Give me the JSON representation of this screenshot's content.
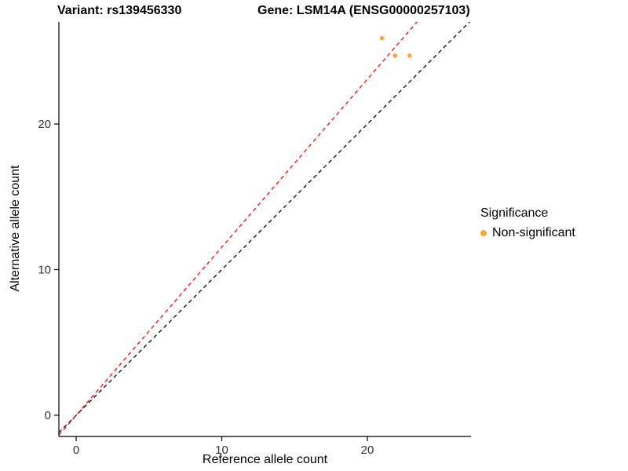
{
  "titles": {
    "left": "Variant: rs139456330",
    "right": "Gene: LSM14A (ENSG00000257103)"
  },
  "axes": {
    "x_label": "Reference allele count",
    "y_label": "Alternative allele count"
  },
  "legend": {
    "title": "Significance",
    "items": [
      {
        "label": "Non-significant",
        "color": "#FAA53C"
      }
    ]
  },
  "chart_data": {
    "type": "scatter",
    "title": "Variant: rs139456330 — Gene: LSM14A (ENSG00000257103)",
    "xlabel": "Reference allele count",
    "ylabel": "Alternative allele count",
    "x_ticks": [
      0,
      10,
      20
    ],
    "y_ticks": [
      0,
      10,
      20
    ],
    "x_range": [
      -1.19,
      27.12
    ],
    "y_range": [
      -1.45,
      27.0
    ],
    "grid": false,
    "legend_position": "right",
    "series": [
      {
        "name": "Non-significant",
        "color": "#FAA53C",
        "points": [
          [
            21.0,
            25.9
          ],
          [
            21.9,
            24.7
          ],
          [
            22.9,
            24.7
          ]
        ]
      }
    ],
    "lines": [
      {
        "name": "identity",
        "slope": 1.0,
        "intercept": 0,
        "color": "#000000",
        "style": "dashed"
      },
      {
        "name": "expected-ratio",
        "slope": 1.154,
        "intercept": 0,
        "color": "#FF0000",
        "style": "dashed"
      }
    ]
  }
}
